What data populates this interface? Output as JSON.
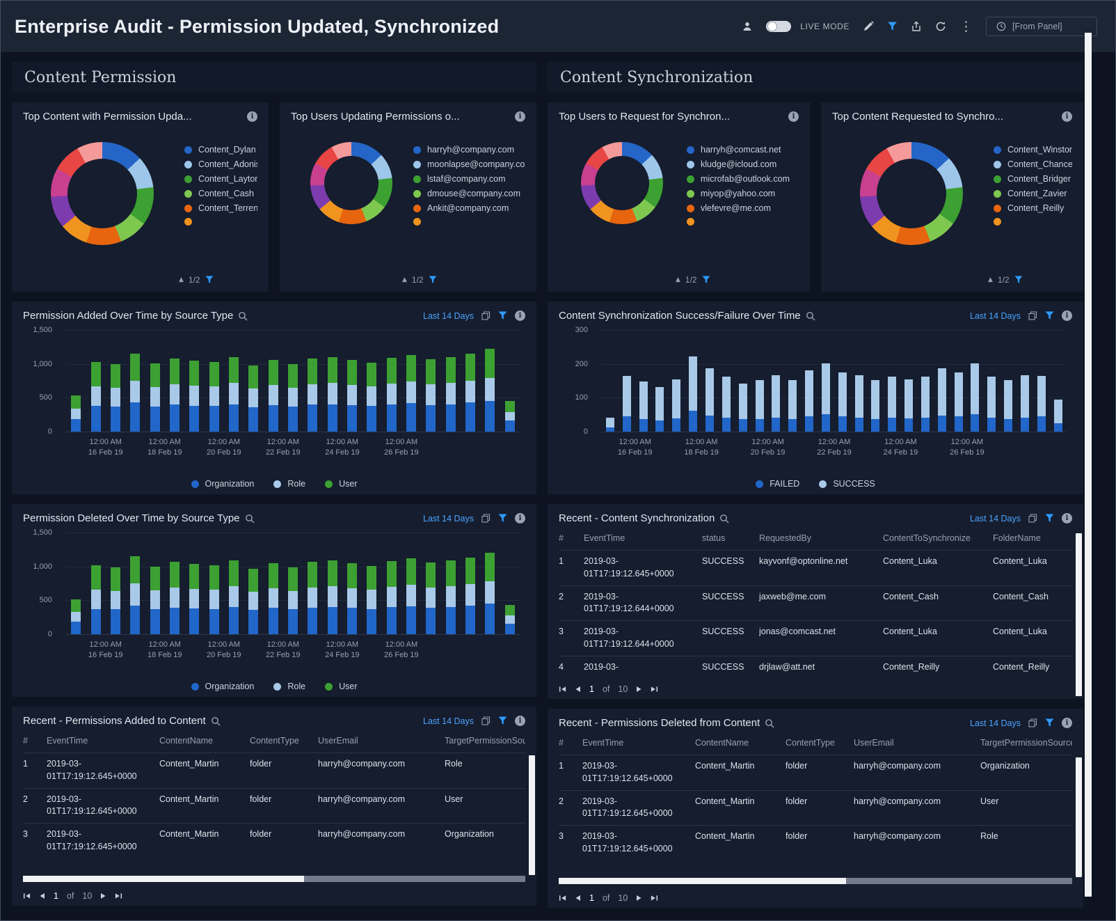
{
  "header": {
    "title": "Enterprise Audit - Permission Updated, Synchronized",
    "live_mode_label": "LIVE MODE",
    "time_range_label": "[From Panel]"
  },
  "sections": {
    "left": "Content Permission",
    "right": "Content Synchronization"
  },
  "colors": {
    "accent_blue": "#2f9bff",
    "link_blue": "#4da3ff",
    "bar_blue": "#2166c9",
    "bar_light_blue": "#a9c9e8",
    "bar_green": "#3da032",
    "panel_bg": "#151d2e",
    "page_bg": "#0d1321"
  },
  "donuts": [
    {
      "title": "Top Content with Permission Upda...",
      "pager": "1/2",
      "segments": [
        {
          "color": "#2565c7",
          "value": 13
        },
        {
          "color": "#9dc6ea",
          "value": 10
        },
        {
          "color": "#3da032",
          "value": 12
        },
        {
          "color": "#7ec850",
          "value": 9
        },
        {
          "color": "#e8650f",
          "value": 11
        },
        {
          "color": "#f0941f",
          "value": 9
        },
        {
          "color": "#7d3cae",
          "value": 10
        },
        {
          "color": "#c8408f",
          "value": 9
        },
        {
          "color": "#e84545",
          "value": 9
        },
        {
          "color": "#f59a9a",
          "value": 8
        }
      ],
      "legend": [
        {
          "color": "#2565c7",
          "label": "Content_Dylan"
        },
        {
          "color": "#9dc6ea",
          "label": "Content_Adonis"
        },
        {
          "color": "#3da032",
          "label": "Content_Layton"
        },
        {
          "color": "#7ec850",
          "label": "Content_Cash"
        },
        {
          "color": "#e8650f",
          "label": "Content_Terrence"
        },
        {
          "color": "#f0941f",
          "label": ""
        }
      ]
    },
    {
      "title": "Top Users Updating Permissions o...",
      "pager": "1/2",
      "segments": [
        {
          "color": "#2565c7",
          "value": 13
        },
        {
          "color": "#9dc6ea",
          "value": 10
        },
        {
          "color": "#3da032",
          "value": 12
        },
        {
          "color": "#7ec850",
          "value": 9
        },
        {
          "color": "#e8650f",
          "value": 11
        },
        {
          "color": "#f0941f",
          "value": 9
        },
        {
          "color": "#7d3cae",
          "value": 10
        },
        {
          "color": "#c8408f",
          "value": 9
        },
        {
          "color": "#e84545",
          "value": 9
        },
        {
          "color": "#f59a9a",
          "value": 8
        }
      ],
      "legend": [
        {
          "color": "#2565c7",
          "label": "harryh@company.com"
        },
        {
          "color": "#9dc6ea",
          "label": "moonlapse@company.com"
        },
        {
          "color": "#3da032",
          "label": "lstaf@company.com"
        },
        {
          "color": "#7ec850",
          "label": "dmouse@company.com"
        },
        {
          "color": "#e8650f",
          "label": "Ankit@company.com"
        },
        {
          "color": "#f0941f",
          "label": ""
        }
      ]
    },
    {
      "title": "Top Users to Request for Synchron...",
      "pager": "1/2",
      "segments": [
        {
          "color": "#2565c7",
          "value": 13
        },
        {
          "color": "#9dc6ea",
          "value": 10
        },
        {
          "color": "#3da032",
          "value": 12
        },
        {
          "color": "#7ec850",
          "value": 9
        },
        {
          "color": "#e8650f",
          "value": 11
        },
        {
          "color": "#f0941f",
          "value": 9
        },
        {
          "color": "#7d3cae",
          "value": 10
        },
        {
          "color": "#c8408f",
          "value": 9
        },
        {
          "color": "#e84545",
          "value": 9
        },
        {
          "color": "#f59a9a",
          "value": 8
        }
      ],
      "legend": [
        {
          "color": "#2565c7",
          "label": "harryh@comcast.net"
        },
        {
          "color": "#9dc6ea",
          "label": "kludge@icloud.com"
        },
        {
          "color": "#3da032",
          "label": "microfab@outlook.com"
        },
        {
          "color": "#7ec850",
          "label": "miyop@yahoo.com"
        },
        {
          "color": "#e8650f",
          "label": "vlefevre@me.com"
        },
        {
          "color": "#f0941f",
          "label": ""
        }
      ]
    },
    {
      "title": "Top Content Requested to Synchro...",
      "pager": "1/2",
      "segments": [
        {
          "color": "#2565c7",
          "value": 13
        },
        {
          "color": "#9dc6ea",
          "value": 10
        },
        {
          "color": "#3da032",
          "value": 12
        },
        {
          "color": "#7ec850",
          "value": 9
        },
        {
          "color": "#e8650f",
          "value": 11
        },
        {
          "color": "#f0941f",
          "value": 9
        },
        {
          "color": "#7d3cae",
          "value": 10
        },
        {
          "color": "#c8408f",
          "value": 9
        },
        {
          "color": "#e84545",
          "value": 9
        },
        {
          "color": "#f59a9a",
          "value": 8
        }
      ],
      "legend": [
        {
          "color": "#2565c7",
          "label": "Content_Winston"
        },
        {
          "color": "#9dc6ea",
          "label": "Content_Chance"
        },
        {
          "color": "#3da032",
          "label": "Content_Bridger"
        },
        {
          "color": "#7ec850",
          "label": "Content_Zavier"
        },
        {
          "color": "#e8650f",
          "label": "Content_Reilly"
        },
        {
          "color": "#f0941f",
          "label": ""
        }
      ]
    }
  ],
  "bars": [
    {
      "title": "Permission Added Over Time by Source Type",
      "range": "Last 14 Days",
      "type": "bar",
      "ylim": 1500,
      "yticks": [
        {
          "v": 0,
          "t": "0"
        },
        {
          "v": 500,
          "t": "500"
        },
        {
          "v": 1000,
          "t": "1,000"
        },
        {
          "v": 1500,
          "t": "1,500"
        }
      ],
      "stack": [
        {
          "name": "User",
          "color": "#3da032",
          "values": [
            190,
            360,
            350,
            400,
            355,
            380,
            370,
            360,
            385,
            345,
            370,
            350,
            380,
            385,
            370,
            355,
            380,
            395,
            375,
            385,
            400,
            425,
            160
          ]
        },
        {
          "name": "Role",
          "color": "#a9c9e8",
          "values": [
            150,
            290,
            280,
            320,
            285,
            300,
            295,
            290,
            310,
            275,
            295,
            280,
            300,
            310,
            295,
            285,
            305,
            315,
            300,
            310,
            320,
            340,
            130
          ]
        },
        {
          "name": "Organization",
          "color": "#2166c9",
          "values": [
            190,
            380,
            370,
            430,
            370,
            400,
            385,
            380,
            405,
            360,
            395,
            370,
            400,
            405,
            395,
            380,
            405,
            420,
            395,
            405,
            430,
            455,
            160
          ]
        }
      ],
      "legend": [
        {
          "color": "#2166c9",
          "label": "Organization"
        },
        {
          "color": "#a9c9e8",
          "label": "Role"
        },
        {
          "color": "#3da032",
          "label": "User"
        }
      ],
      "xlabels": [
        {
          "i": 1.5,
          "a": "12:00 AM",
          "b": "16 Feb 19"
        },
        {
          "i": 4.5,
          "a": "12:00 AM",
          "b": "18 Feb 19"
        },
        {
          "i": 7.5,
          "a": "12:00 AM",
          "b": "20 Feb 19"
        },
        {
          "i": 10.5,
          "a": "12:00 AM",
          "b": "22 Feb 19"
        },
        {
          "i": 13.5,
          "a": "12:00 AM",
          "b": "24 Feb 19"
        },
        {
          "i": 16.5,
          "a": "12:00 AM",
          "b": "26 Feb 19"
        }
      ]
    },
    {
      "title": "Content Synchronization Success/Failure Over Time",
      "range": "Last 14 Days",
      "type": "bar",
      "ylim": 300,
      "yticks": [
        {
          "v": 0,
          "t": "0"
        },
        {
          "v": 100,
          "t": "100"
        },
        {
          "v": 200,
          "t": "200"
        },
        {
          "v": 300,
          "t": "300"
        }
      ],
      "stack": [
        {
          "name": "SUCCESS",
          "color": "#a9c9e8",
          "values": [
            30,
            120,
            110,
            100,
            115,
            160,
            140,
            120,
            105,
            115,
            125,
            115,
            135,
            150,
            130,
            125,
            115,
            120,
            115,
            120,
            140,
            130,
            150,
            120,
            115,
            125,
            120,
            70
          ]
        },
        {
          "name": "FAILED",
          "color": "#2166c9",
          "values": [
            12,
            45,
            38,
            32,
            40,
            62,
            48,
            42,
            36,
            38,
            42,
            38,
            46,
            52,
            45,
            42,
            38,
            42,
            40,
            42,
            48,
            45,
            52,
            42,
            38,
            42,
            45,
            25
          ]
        }
      ],
      "legend": [
        {
          "color": "#2166c9",
          "label": "FAILED"
        },
        {
          "color": "#a9c9e8",
          "label": "SUCCESS"
        }
      ],
      "xlabels": [
        {
          "i": 1.5,
          "a": "12:00 AM",
          "b": "16 Feb 19"
        },
        {
          "i": 5.5,
          "a": "12:00 AM",
          "b": "18 Feb 19"
        },
        {
          "i": 9.5,
          "a": "12:00 AM",
          "b": "20 Feb 19"
        },
        {
          "i": 13.5,
          "a": "12:00 AM",
          "b": "22 Feb 19"
        },
        {
          "i": 17.5,
          "a": "12:00 AM",
          "b": "24 Feb 19"
        },
        {
          "i": 21.5,
          "a": "12:00 AM",
          "b": "26 Feb 19"
        }
      ]
    },
    {
      "title": "Permission Deleted Over Time by Source Type",
      "range": "Last 14 Days",
      "type": "bar",
      "ylim": 1500,
      "yticks": [
        {
          "v": 0,
          "t": "0"
        },
        {
          "v": 500,
          "t": "500"
        },
        {
          "v": 1000,
          "t": "1,000"
        },
        {
          "v": 1500,
          "t": "1,500"
        }
      ],
      "stack": [
        {
          "name": "User",
          "color": "#3da032",
          "values": [
            180,
            355,
            345,
            405,
            350,
            375,
            365,
            355,
            380,
            340,
            365,
            345,
            375,
            380,
            365,
            350,
            375,
            390,
            370,
            380,
            395,
            420,
            155
          ]
        },
        {
          "name": "Role",
          "color": "#a9c9e8",
          "values": [
            145,
            285,
            275,
            325,
            280,
            295,
            290,
            285,
            305,
            270,
            290,
            275,
            295,
            305,
            290,
            280,
            300,
            310,
            295,
            305,
            315,
            335,
            125
          ]
        },
        {
          "name": "Organization",
          "color": "#2166c9",
          "values": [
            185,
            375,
            365,
            425,
            370,
            395,
            380,
            375,
            400,
            355,
            390,
            365,
            395,
            400,
            390,
            375,
            400,
            415,
            390,
            400,
            425,
            450,
            155
          ]
        }
      ],
      "legend": [
        {
          "color": "#2166c9",
          "label": "Organization"
        },
        {
          "color": "#a9c9e8",
          "label": "Role"
        },
        {
          "color": "#3da032",
          "label": "User"
        }
      ],
      "xlabels": [
        {
          "i": 1.5,
          "a": "12:00 AM",
          "b": "16 Feb 19"
        },
        {
          "i": 4.5,
          "a": "12:00 AM",
          "b": "18 Feb 19"
        },
        {
          "i": 7.5,
          "a": "12:00 AM",
          "b": "20 Feb 19"
        },
        {
          "i": 10.5,
          "a": "12:00 AM",
          "b": "22 Feb 19"
        },
        {
          "i": 13.5,
          "a": "12:00 AM",
          "b": "24 Feb 19"
        },
        {
          "i": 16.5,
          "a": "12:00 AM",
          "b": "26 Feb 19"
        }
      ]
    }
  ],
  "tables": [
    {
      "title": "Recent - Content Synchronization",
      "range": "Last 14 Days",
      "columns": [
        "#",
        "EventTime",
        "status",
        "RequestedBy",
        "ContentToSynchronize",
        "FolderName"
      ],
      "rows": [
        [
          "1",
          "2019-03-01T17:19:12.645+0000",
          "SUCCESS",
          "kayvonf@optonline.net",
          "Content_Luka",
          "Content_Luka"
        ],
        [
          "2",
          "2019-03-01T17:19:12.644+0000",
          "SUCCESS",
          "jaxweb@me.com",
          "Content_Cash",
          "Content_Cash"
        ],
        [
          "3",
          "2019-03-01T17:19:12.644+0000",
          "SUCCESS",
          "jonas@comcast.net",
          "Content_Luka",
          "Content_Luka"
        ],
        [
          "4",
          "2019-03-",
          "SUCCESS",
          "drjlaw@att.net",
          "Content_Reilly",
          "Content_Reilly"
        ]
      ],
      "pager": {
        "page": "1",
        "of": "of",
        "total": "10"
      }
    },
    {
      "title": "Recent - Permissions Added to Content",
      "range": "Last 14 Days",
      "columns": [
        "#",
        "EventTime",
        "ContentName",
        "ContentType",
        "UserEmail",
        "TargetPermissionSource"
      ],
      "rows": [
        [
          "1",
          "2019-03-01T17:19:12.645+0000",
          "Content_Martin",
          "folder",
          "harryh@company.com",
          "Role"
        ],
        [
          "2",
          "2019-03-01T17:19:12.645+0000",
          "Content_Martin",
          "folder",
          "harryh@company.com",
          "User"
        ],
        [
          "3",
          "2019-03-01T17:19:12.645+0000",
          "Content_Martin",
          "folder",
          "harryh@company.com",
          "Organization"
        ]
      ],
      "pager": {
        "page": "1",
        "of": "of",
        "total": "10"
      }
    },
    {
      "title": "Recent - Permissions Deleted from Content",
      "range": "Last 14 Days",
      "columns": [
        "#",
        "EventTime",
        "ContentName",
        "ContentType",
        "UserEmail",
        "TargetPermissionSource"
      ],
      "rows": [
        [
          "1",
          "2019-03-01T17:19:12.645+0000",
          "Content_Martin",
          "folder",
          "harryh@company.com",
          "Organization"
        ],
        [
          "2",
          "2019-03-01T17:19:12.645+0000",
          "Content_Martin",
          "folder",
          "harryh@company.com",
          "User"
        ],
        [
          "3",
          "2019-03-01T17:19:12.645+0000",
          "Content_Martin",
          "folder",
          "harryh@company.com",
          "Role"
        ]
      ],
      "pager": {
        "page": "1",
        "of": "of",
        "total": "10"
      }
    }
  ]
}
